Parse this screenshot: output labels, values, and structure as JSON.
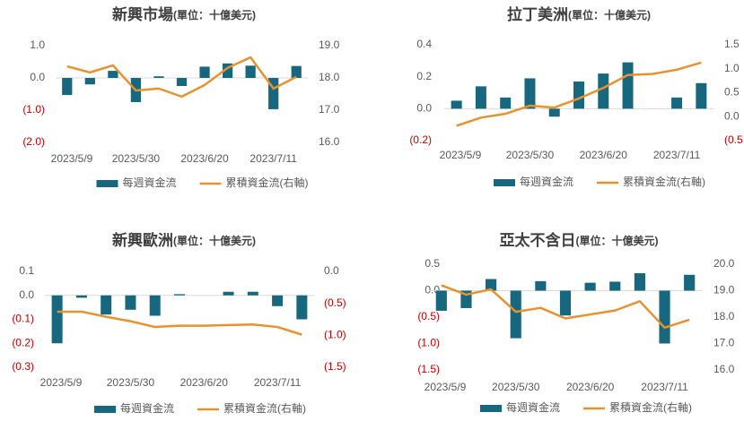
{
  "chart_data": [
    {
      "type": "combo",
      "title": "新興市場",
      "subtitle": "(單位：十億美元)",
      "categories": [
        "2023/5/9",
        null,
        null,
        "2023/5/30",
        null,
        null,
        "2023/6/20",
        null,
        null,
        "2023/7/11",
        null
      ],
      "series": [
        {
          "name": "每週資金流",
          "type": "bar",
          "color": "#17687e",
          "values": [
            -0.53,
            -0.2,
            0.22,
            -0.75,
            0.05,
            -0.25,
            0.35,
            0.45,
            0.38,
            -0.97,
            0.37
          ]
        },
        {
          "name": "累積資金流(右軸)",
          "type": "line",
          "axis": "y2",
          "color": "#e8912f",
          "values": [
            18.36,
            18.17,
            18.39,
            17.61,
            17.67,
            17.42,
            17.78,
            18.31,
            18.64,
            17.67,
            18.03
          ]
        }
      ],
      "ylim": [
        -2,
        1
      ],
      "yticks": [
        {
          "value": 1,
          "label": "1.0"
        },
        {
          "value": 0,
          "label": "0.0"
        },
        {
          "value": -1,
          "label": "(1.0)"
        },
        {
          "value": -2,
          "label": "(2.0)"
        }
      ],
      "y2lim": [
        16,
        19
      ],
      "y2ticks": [
        {
          "value": 19,
          "label": "19.0"
        },
        {
          "value": 18,
          "label": "18.0"
        },
        {
          "value": 17,
          "label": "17.0"
        },
        {
          "value": 16,
          "label": "16.0"
        }
      ],
      "negative_label_color": "#c00000"
    },
    {
      "type": "combo",
      "title": "拉丁美洲",
      "subtitle": "(單位：十億美元)",
      "categories": [
        "2023/5/9",
        null,
        null,
        "2023/5/30",
        null,
        null,
        "2023/6/20",
        null,
        null,
        "2023/7/11",
        null
      ],
      "series": [
        {
          "name": "每週資金流",
          "type": "bar",
          "color": "#17687e",
          "values": [
            0.05,
            0.14,
            0.07,
            0.19,
            -0.05,
            0.17,
            0.22,
            0.29,
            0,
            0.07,
            0.16
          ]
        },
        {
          "name": "累積資金流(右軸)",
          "type": "line",
          "axis": "y2",
          "color": "#e8912f",
          "values": [
            -0.19,
            -0.02,
            0.06,
            0.23,
            0.19,
            0.38,
            0.6,
            0.87,
            0.89,
            0.98,
            1.13
          ]
        }
      ],
      "ylim": [
        -0.2,
        0.4
      ],
      "yticks": [
        0.4,
        0.2,
        {
          "value": 0,
          "label": "0.0"
        },
        {
          "value": -0.2,
          "label": "(0.2)"
        }
      ],
      "y2lim": [
        -0.5,
        1.5
      ],
      "y2ticks": [
        1.5,
        {
          "value": 1,
          "label": "1.0"
        },
        0.5,
        {
          "value": 0,
          "label": "0.0"
        },
        {
          "value": -0.5,
          "label": "(0.5"
        }
      ],
      "negative_label_color": "#c00000"
    },
    {
      "type": "combo",
      "title": "新興歐洲",
      "subtitle": "(單位：十億美元)",
      "categories": [
        "2023/5/9",
        null,
        null,
        "2023/5/30",
        null,
        null,
        "2023/6/20",
        null,
        null,
        "2023/7/11",
        null
      ],
      "series": [
        {
          "name": "每週資金流",
          "type": "bar",
          "color": "#17687e",
          "values": [
            -0.2,
            -0.01,
            -0.08,
            -0.06,
            -0.085,
            0.005,
            0,
            0.015,
            0.015,
            -0.045,
            -0.1
          ]
        },
        {
          "name": "累積資金流(右軸)",
          "type": "line",
          "axis": "y2",
          "color": "#e8912f",
          "values": [
            -0.63,
            -0.63,
            -0.71,
            -0.78,
            -0.87,
            -0.85,
            -0.85,
            -0.84,
            -0.83,
            -0.87,
            -0.99
          ]
        }
      ],
      "ylim": [
        -0.3,
        0.1
      ],
      "yticks": [
        0.1,
        {
          "value": 0,
          "label": "0.0"
        },
        {
          "value": -0.1,
          "label": "(0.1)"
        },
        {
          "value": -0.2,
          "label": "(0.2)"
        },
        {
          "value": -0.3,
          "label": "(0.3)"
        }
      ],
      "y2lim": [
        -1.5,
        0
      ],
      "y2ticks": [
        {
          "value": 0,
          "label": "0.0"
        },
        {
          "value": -0.5,
          "label": "(0.5)"
        },
        {
          "value": -1,
          "label": "(1.0)"
        },
        {
          "value": -1.5,
          "label": "(1.5)"
        }
      ],
      "negative_label_color": "#c00000"
    },
    {
      "type": "combo",
      "title": "亞太不含日",
      "subtitle": "(單位：十億美元)",
      "categories": [
        "2023/5/9",
        null,
        null,
        "2023/5/30",
        null,
        null,
        "2023/6/20",
        null,
        null,
        "2023/7/11",
        null
      ],
      "series": [
        {
          "name": "每週資金流",
          "type": "bar",
          "color": "#17687e",
          "values": [
            -0.38,
            -0.33,
            0.22,
            -0.9,
            0.18,
            -0.47,
            0.15,
            0.17,
            0.33,
            -1.0,
            0.3
          ]
        },
        {
          "name": "累積資金流(右軸)",
          "type": "line",
          "axis": "y2",
          "color": "#e8912f",
          "values": [
            19.2,
            18.85,
            19.05,
            18.2,
            18.35,
            17.95,
            18.1,
            18.25,
            18.6,
            17.6,
            17.9
          ]
        }
      ],
      "ylim": [
        -1.5,
        0.5
      ],
      "yticks": [
        0.5,
        {
          "value": 0,
          "label": "0.0"
        },
        {
          "value": -0.5,
          "label": "(0.5)"
        },
        {
          "value": -1,
          "label": "(1.0)"
        },
        {
          "value": -1.5,
          "label": "(1.5)"
        }
      ],
      "y2lim": [
        16,
        20
      ],
      "y2ticks": [
        {
          "value": 20,
          "label": "20.0"
        },
        {
          "value": 19,
          "label": "19.0"
        },
        {
          "value": 18,
          "label": "18.0"
        },
        {
          "value": 17,
          "label": "17.0"
        },
        {
          "value": 16,
          "label": "16.0"
        }
      ],
      "negative_label_color": "#c00000"
    }
  ]
}
